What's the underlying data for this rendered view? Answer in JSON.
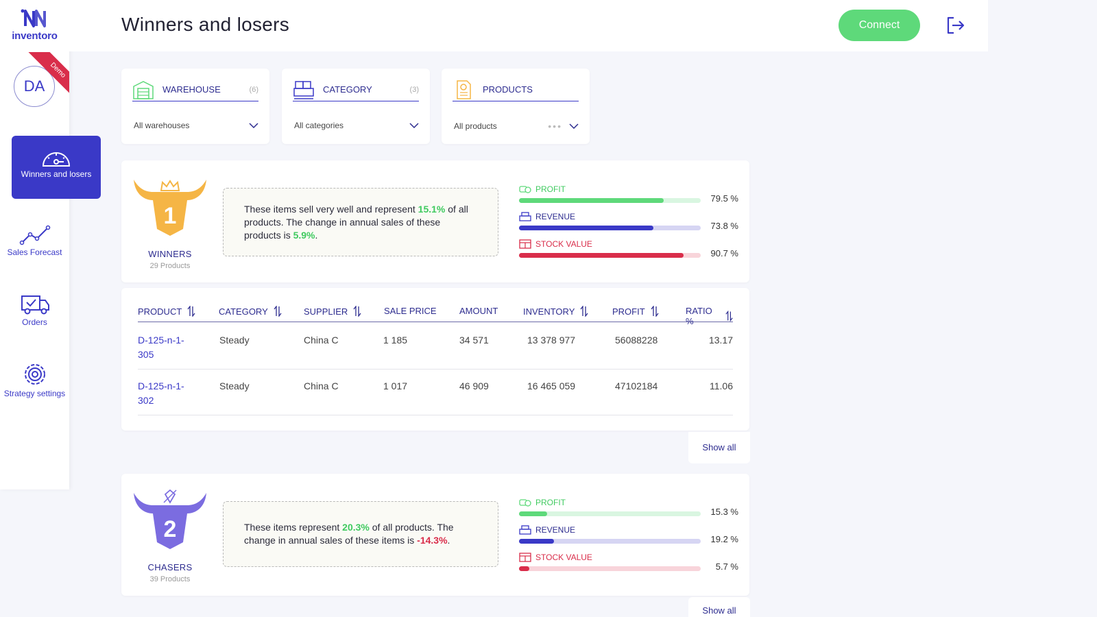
{
  "app": {
    "name": "inventoro",
    "avatar_initials": "DA",
    "ribbon": "Demo"
  },
  "header": {
    "title": "Winners and losers",
    "connect_label": "Connect"
  },
  "sidebar": {
    "items": [
      {
        "label": "Winners and losers",
        "icon": "speedometer-icon",
        "active": true
      },
      {
        "label": "Sales Forecast",
        "icon": "chart-line-icon",
        "active": false
      },
      {
        "label": "Orders",
        "icon": "truck-icon",
        "active": false
      },
      {
        "label": "Strategy settings",
        "icon": "gear-icon",
        "active": false
      }
    ]
  },
  "filters": [
    {
      "label": "WAREHOUSE",
      "count": "(6)",
      "value": "All warehouses",
      "icon": "warehouse-icon"
    },
    {
      "label": "CATEGORY",
      "count": "(3)",
      "value": "All categories",
      "icon": "boxes-icon"
    },
    {
      "label": "PRODUCTS",
      "count": "",
      "value": "All products",
      "icon": "document-icon"
    }
  ],
  "groups": [
    {
      "rank": "1",
      "title": "WINNERS",
      "subtitle": "29 Products",
      "desc_pre": "These items sell very well and represent ",
      "desc_pct": "15.1%",
      "desc_mid": " of all products. The change in annual sales of these products is ",
      "desc_change": "5.9%",
      "desc_post": ".",
      "metrics": {
        "profit": {
          "label": "PROFIT",
          "value_text": "79.5 %",
          "value": 79.5
        },
        "revenue": {
          "label": "REVENUE",
          "value_text": "73.8 %",
          "value": 73.8
        },
        "stock": {
          "label": "STOCK VALUE",
          "value_text": "90.7 %",
          "value": 90.7
        }
      },
      "show_all": "Show all"
    },
    {
      "rank": "2",
      "title": "CHASERS",
      "subtitle": "39 Products",
      "desc_pre": "These items represent ",
      "desc_pct": "20.3%",
      "desc_mid": " of all products. The change in annual sales of these items is ",
      "desc_change": "-14.3%",
      "desc_post": ".",
      "metrics": {
        "profit": {
          "label": "PROFIT",
          "value_text": "15.3 %",
          "value": 15.3
        },
        "revenue": {
          "label": "REVENUE",
          "value_text": "19.2 %",
          "value": 19.2
        },
        "stock": {
          "label": "STOCK VALUE",
          "value_text": "5.7 %",
          "value": 5.7
        }
      },
      "show_all": "Show all"
    }
  ],
  "table": {
    "columns": {
      "product": "PRODUCT",
      "category": "CATEGORY",
      "supplier": "SUPPLIER",
      "sale_price": "SALE PRICE",
      "amount": "AMOUNT",
      "inventory": "INVENTORY",
      "profit": "PROFIT",
      "ratio": "RATIO %"
    },
    "rows": [
      {
        "product": "D-125-n-1-305",
        "category": "Steady",
        "supplier": "China C",
        "sale_price": "1 185",
        "amount": "34 571",
        "inventory": "13 378 977",
        "profit": "56088228",
        "ratio": "13.17"
      },
      {
        "product": "D-125-n-1-302",
        "category": "Steady",
        "supplier": "China C",
        "sale_price": "1 017",
        "amount": "46 909",
        "inventory": "16 465 059",
        "profit": "47102184",
        "ratio": "11.06"
      }
    ]
  },
  "colors": {
    "primary": "#3a39c7",
    "green": "#5ed97a",
    "red": "#d92d4a",
    "gold": "#f5b545",
    "purple": "#7b6ce0"
  }
}
